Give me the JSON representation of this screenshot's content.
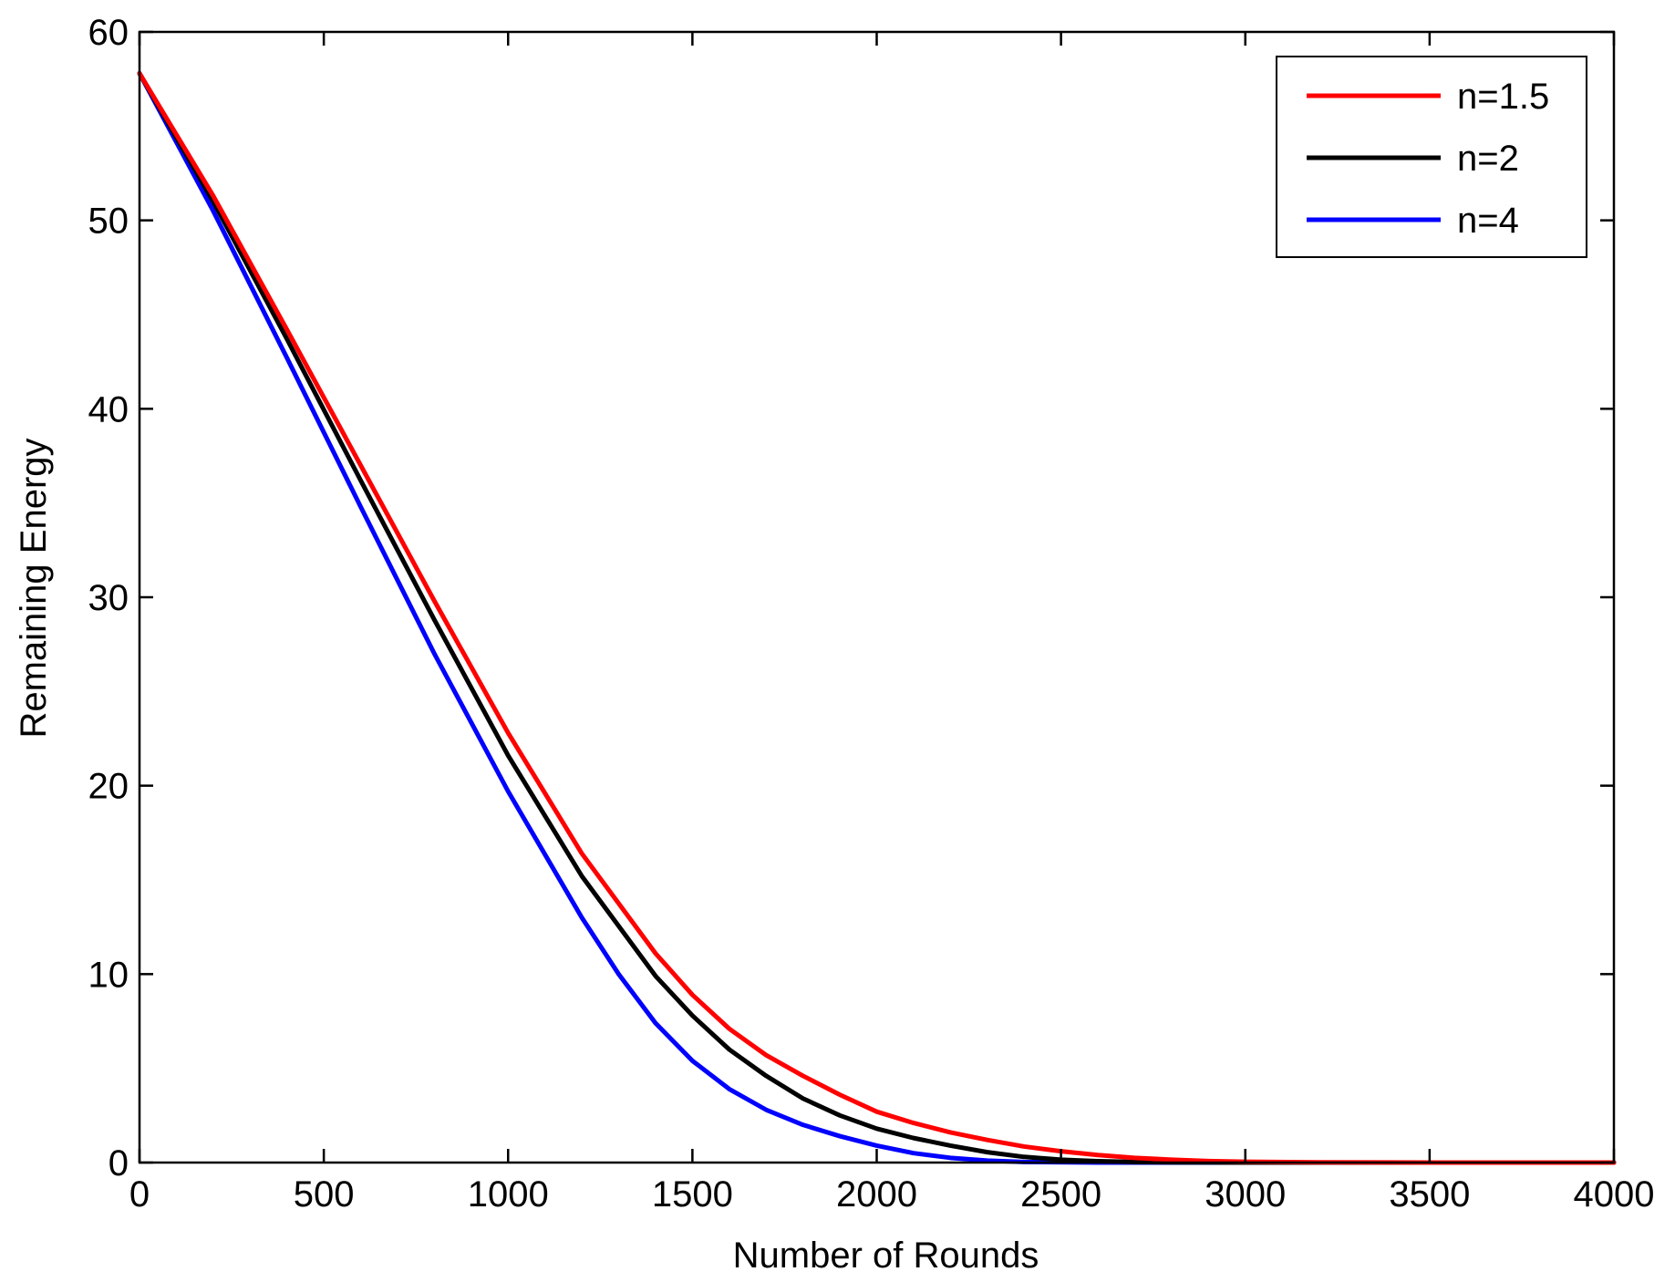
{
  "chart_data": {
    "type": "line",
    "title": "",
    "xlabel": "Number of Rounds",
    "ylabel": "Remaining Energy",
    "xlim": [
      0,
      4000
    ],
    "ylim": [
      0,
      60
    ],
    "xticks": [
      0,
      500,
      1000,
      1500,
      2000,
      2500,
      3000,
      3500,
      4000
    ],
    "yticks": [
      0,
      10,
      20,
      30,
      40,
      50,
      60
    ],
    "xtick_labels": [
      "0",
      "500",
      "1000",
      "1500",
      "2000",
      "2500",
      "3000",
      "3500",
      "4000"
    ],
    "ytick_labels": [
      "0",
      "10",
      "20",
      "30",
      "40",
      "50",
      "60"
    ],
    "grid": false,
    "legend_position": "top-right",
    "series": [
      {
        "name": "n=1.5",
        "color": "#ff0000",
        "x": [
          0,
          200,
          400,
          600,
          800,
          1000,
          1200,
          1400,
          1500,
          1600,
          1700,
          1800,
          1900,
          2000,
          2100,
          2200,
          2300,
          2400,
          2500,
          2600,
          2700,
          2800,
          2900,
          3000,
          3200,
          3500,
          4000
        ],
        "y": [
          57.8,
          51.3,
          44.2,
          37.0,
          29.8,
          22.8,
          16.4,
          11.1,
          8.9,
          7.1,
          5.7,
          4.6,
          3.6,
          2.7,
          2.1,
          1.6,
          1.2,
          0.85,
          0.6,
          0.4,
          0.25,
          0.15,
          0.08,
          0.04,
          0.01,
          0.0,
          0.0
        ]
      },
      {
        "name": "n=2",
        "color": "#000000",
        "x": [
          0,
          200,
          400,
          600,
          800,
          1000,
          1200,
          1400,
          1500,
          1600,
          1700,
          1800,
          1900,
          2000,
          2100,
          2200,
          2300,
          2400,
          2500,
          2600,
          2700,
          2800,
          3000,
          3500,
          4000
        ],
        "y": [
          57.8,
          51.0,
          43.7,
          36.2,
          28.8,
          21.6,
          15.2,
          9.9,
          7.8,
          6.0,
          4.6,
          3.4,
          2.5,
          1.8,
          1.3,
          0.9,
          0.55,
          0.3,
          0.15,
          0.07,
          0.03,
          0.01,
          0.0,
          0.0,
          0.0
        ]
      },
      {
        "name": "n=4",
        "color": "#0000ff",
        "x": [
          0,
          200,
          400,
          600,
          800,
          1000,
          1200,
          1300,
          1400,
          1500,
          1600,
          1700,
          1800,
          1900,
          2000,
          2100,
          2200,
          2300,
          2400,
          2600,
          3000,
          3500,
          4000
        ],
        "y": [
          57.8,
          50.5,
          42.7,
          34.8,
          27.0,
          19.7,
          13.0,
          10.0,
          7.4,
          5.4,
          3.9,
          2.8,
          2.0,
          1.4,
          0.9,
          0.5,
          0.25,
          0.1,
          0.03,
          0.0,
          0.0,
          0.0,
          0.0
        ]
      }
    ]
  }
}
